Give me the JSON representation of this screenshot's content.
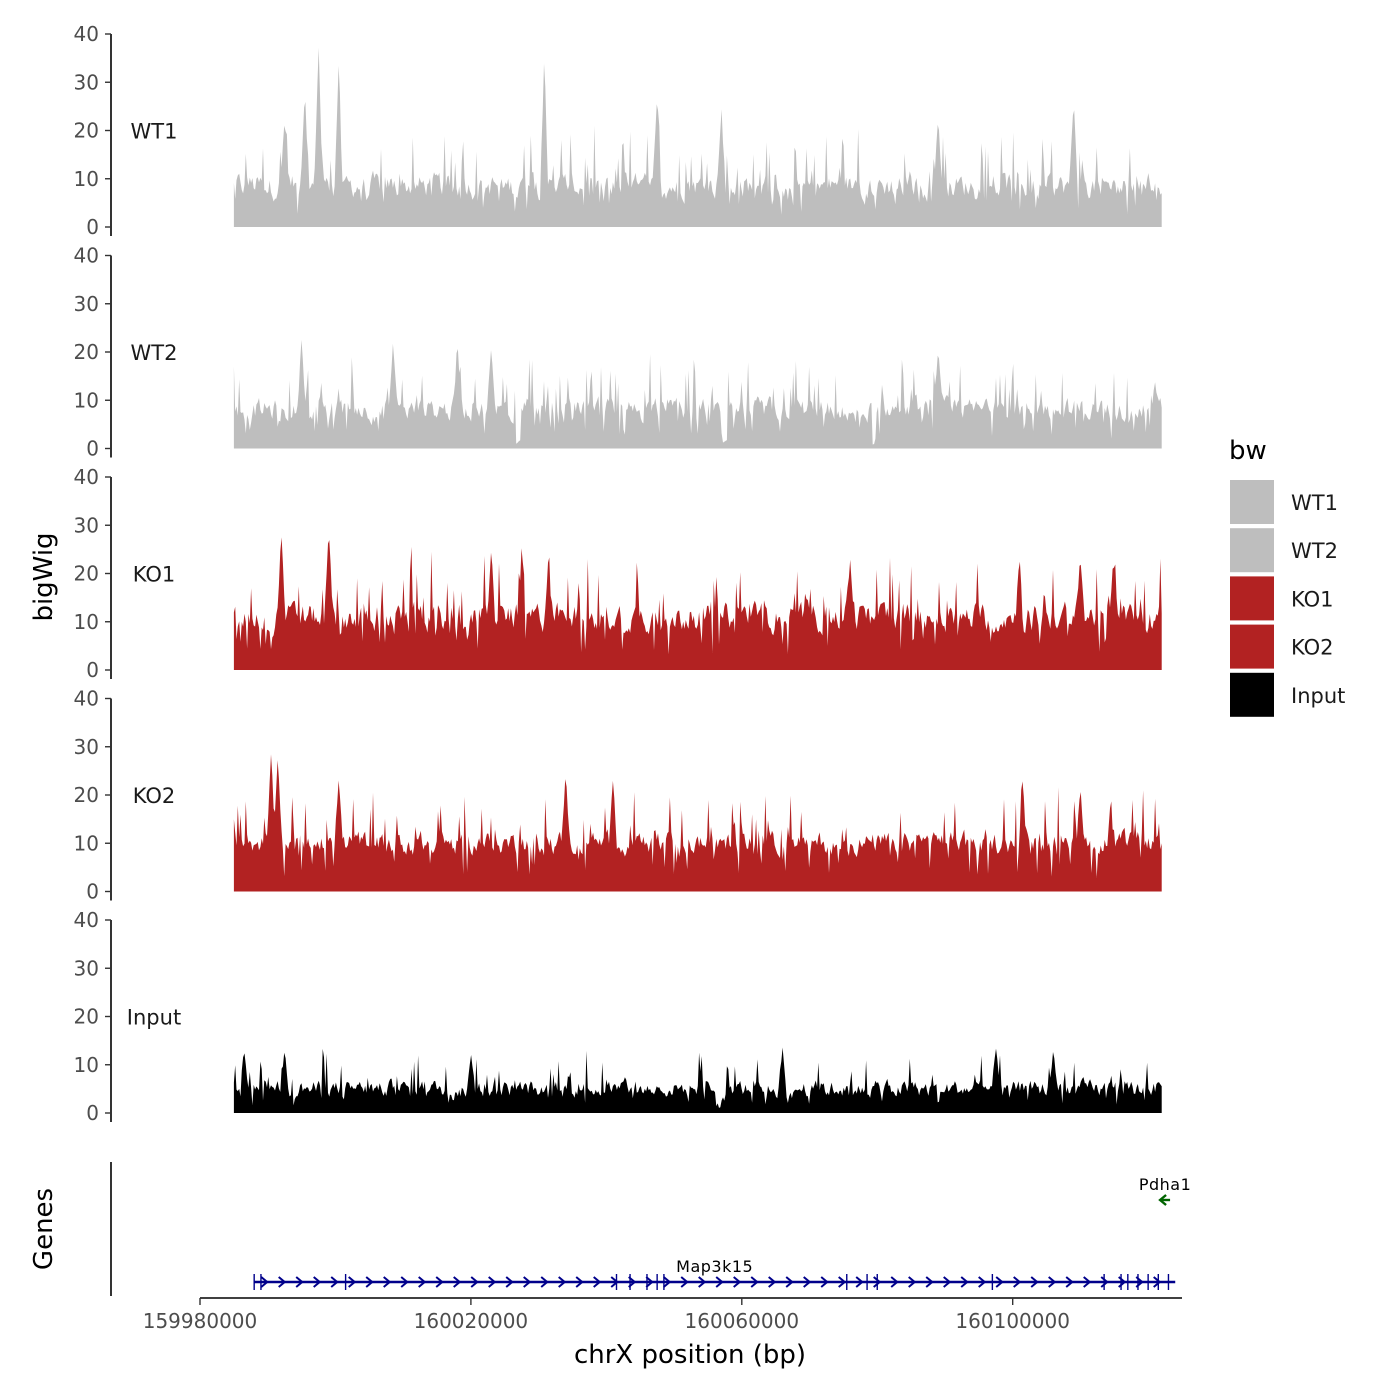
{
  "chart_data": {
    "type": "area",
    "chromosome": "chrX",
    "xlabel": "chrX position (bp)",
    "ylabel": "bigWig",
    "genes_label": "Genes",
    "xlim": [
      159980000,
      160125000
    ],
    "data_range": [
      159985000,
      160122000
    ],
    "x_ticks": [
      159980000,
      160020000,
      160060000,
      160100000
    ],
    "x_tick_labels": [
      "159980000",
      "160020000",
      "160060000",
      "160100000"
    ],
    "ylim": [
      0,
      40
    ],
    "y_ticks": [
      0,
      10,
      20,
      30,
      40
    ],
    "y_tick_labels": [
      "0",
      "10",
      "20",
      "30",
      "40"
    ],
    "legend": {
      "title": "bw",
      "entries": [
        {
          "label": "WT1",
          "color": "#bebebe"
        },
        {
          "label": "WT2",
          "color": "#bebebe"
        },
        {
          "label": "KO1",
          "color": "#b22222"
        },
        {
          "label": "KO2",
          "color": "#b22222"
        },
        {
          "label": "Input",
          "color": "#000000"
        }
      ]
    },
    "series": [
      {
        "name": "WT1",
        "color": "#bebebe",
        "baseline_range": [
          4,
          13
        ],
        "peaks": [
          {
            "x": 159997500,
            "y": 38.5
          },
          {
            "x": 160000500,
            "y": 35
          },
          {
            "x": 160030800,
            "y": 34
          },
          {
            "x": 159995500,
            "y": 28
          },
          {
            "x": 160047500,
            "y": 27
          },
          {
            "x": 160057000,
            "y": 25
          },
          {
            "x": 160109000,
            "y": 26.5
          },
          {
            "x": 160089000,
            "y": 23
          },
          {
            "x": 159992500,
            "y": 23
          }
        ]
      },
      {
        "name": "WT2",
        "color": "#bebebe",
        "baseline_range": [
          4,
          12
        ],
        "dips": [
          160027000,
          160057500,
          160079500
        ],
        "peaks": [
          {
            "x": 159995000,
            "y": 23
          },
          {
            "x": 160008500,
            "y": 22
          },
          {
            "x": 160018000,
            "y": 22.5
          },
          {
            "x": 160023000,
            "y": 21
          },
          {
            "x": 160089000,
            "y": 21
          },
          {
            "x": 160121000,
            "y": 14
          }
        ]
      },
      {
        "name": "KO1",
        "color": "#b22222",
        "baseline_range": [
          6,
          16
        ],
        "peaks": [
          {
            "x": 159992000,
            "y": 29
          },
          {
            "x": 159999000,
            "y": 29.5
          },
          {
            "x": 160023000,
            "y": 25
          },
          {
            "x": 160027500,
            "y": 26
          },
          {
            "x": 160031500,
            "y": 25.5
          },
          {
            "x": 160076000,
            "y": 23
          },
          {
            "x": 160101000,
            "y": 24
          },
          {
            "x": 160115000,
            "y": 22
          },
          {
            "x": 160110000,
            "y": 23
          }
        ]
      },
      {
        "name": "KO2",
        "color": "#b22222",
        "baseline_range": [
          6,
          14
        ],
        "peaks": [
          {
            "x": 159990500,
            "y": 29
          },
          {
            "x": 159991500,
            "y": 28
          },
          {
            "x": 160000500,
            "y": 24
          },
          {
            "x": 160034000,
            "y": 25
          },
          {
            "x": 160041000,
            "y": 23.5
          },
          {
            "x": 160101500,
            "y": 23
          },
          {
            "x": 160110000,
            "y": 22
          },
          {
            "x": 160114500,
            "y": 20
          }
        ]
      },
      {
        "name": "Input",
        "color": "#000000",
        "baseline_range": [
          2,
          8
        ],
        "dips": [
          160056500
        ],
        "peaks": [
          {
            "x": 159986500,
            "y": 13
          },
          {
            "x": 159992500,
            "y": 13.5
          },
          {
            "x": 160020000,
            "y": 12.5
          },
          {
            "x": 160066000,
            "y": 14
          },
          {
            "x": 160097500,
            "y": 13
          },
          {
            "x": 160106000,
            "y": 13
          }
        ]
      }
    ],
    "genes": [
      {
        "name": "Map3k15",
        "strand": "+",
        "start": 159988000,
        "end": 160124000,
        "color": "#00008b",
        "exons": [
          159988000,
          159989000,
          160001500,
          160041500,
          160043500,
          160046000,
          160047500,
          160048500,
          160075500,
          160078500,
          160080000,
          160097000,
          160113500,
          160116000,
          160117000,
          160118500,
          160120000,
          160121500,
          160123000
        ]
      },
      {
        "name": "Pdha1",
        "strand": "-",
        "start": 160121500,
        "end": 160123500,
        "color": "#006400"
      }
    ]
  }
}
